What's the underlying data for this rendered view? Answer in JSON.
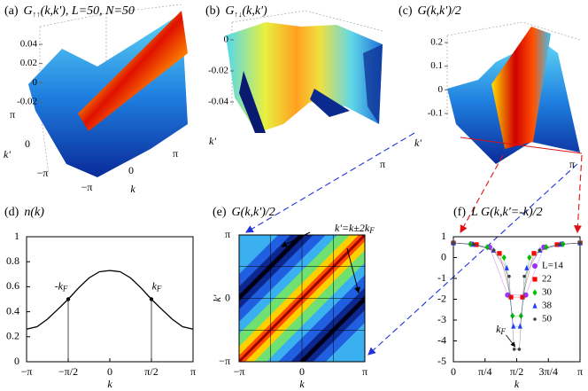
{
  "chart_data": [
    {
      "type": "surface3d",
      "label": "(a)",
      "title": {
        "main": "G",
        "sub": "↑↑",
        "rest": "(k,k'), L=50, N=50"
      },
      "xlabel": "k",
      "ylabel": "k'",
      "xlim": [
        -3.1416,
        3.1416
      ],
      "ylim": [
        -3.1416,
        3.1416
      ],
      "zlim": [
        -0.02,
        0.04
      ],
      "zticks": [
        0.04,
        0.02,
        0,
        -0.02
      ],
      "xticks": [
        {
          "value": -3.1416,
          "label": "−π"
        },
        0,
        {
          "value": 3.1416,
          "label": "π"
        }
      ],
      "yticks": [
        {
          "value": -3.1416,
          "label": "−π"
        },
        0,
        {
          "value": 3.1416,
          "label": "π"
        }
      ]
    },
    {
      "type": "surface3d",
      "label": "(b)",
      "title": {
        "main": "G",
        "sub": "↑↓",
        "rest": "(k,k')"
      },
      "ylabel": "k'",
      "xlim": [
        -3.1416,
        3.1416
      ],
      "zlim": [
        -0.04,
        0
      ],
      "zticks": [
        0,
        -0.02,
        -0.04
      ],
      "xticks": [
        {
          "value": 3.1416,
          "label": "π"
        }
      ]
    },
    {
      "type": "surface3d",
      "label": "(c)",
      "title": {
        "main": "G(k,k')/2"
      },
      "ylabel": "k'",
      "xlim": [
        -3.1416,
        3.1416
      ],
      "zlim": [
        -0.1,
        0.2
      ],
      "zticks": [
        0.2,
        0.1,
        0,
        -0.1
      ],
      "xticks": [
        {
          "value": 3.1416,
          "label": "π"
        }
      ]
    },
    {
      "type": "line",
      "label": "(d)",
      "title": {
        "main": "n(k)"
      },
      "xlabel": "k",
      "color": "#000000",
      "x": [
        -3.1416,
        -2.75,
        -2.36,
        -1.96,
        -1.5708,
        -1.18,
        -0.785,
        -0.39,
        0,
        0.39,
        0.785,
        1.18,
        1.5708,
        1.96,
        2.36,
        2.75,
        3.1416
      ],
      "values": [
        0.26,
        0.28,
        0.34,
        0.42,
        0.5,
        0.59,
        0.67,
        0.72,
        0.73,
        0.72,
        0.67,
        0.59,
        0.5,
        0.42,
        0.34,
        0.28,
        0.26
      ],
      "xlim": [
        -3.1416,
        3.1416
      ],
      "ylim": [
        0,
        1
      ],
      "xticks": [
        {
          "value": -3.1416,
          "label": "−π"
        },
        {
          "value": -1.5708,
          "label": "−π/2"
        },
        0,
        {
          "value": 1.5708,
          "label": "π/2"
        },
        {
          "value": 3.1416,
          "label": "π"
        }
      ],
      "yticks": [
        0,
        0.2,
        0.4,
        0.6,
        0.8,
        1
      ],
      "annotations": [
        {
          "text": "-k",
          "sub": "F",
          "x": -1.5708,
          "y": 0.5
        },
        {
          "text": "k",
          "sub": "F",
          "x": 1.5708,
          "y": 0.5
        }
      ]
    },
    {
      "type": "heatmap",
      "label": "(e)",
      "title": {
        "main": "G(k,k')/2"
      },
      "xlabel": "k",
      "ylabel": "k'",
      "xlim": [
        -3.1416,
        3.1416
      ],
      "ylim": [
        -3.1416,
        3.1416
      ],
      "xticks": [
        {
          "value": -3.1416,
          "label": "−π"
        },
        0,
        {
          "value": 3.1416,
          "label": "π"
        }
      ],
      "yticks": [
        {
          "value": -3.1416,
          "label": "−π"
        },
        0,
        {
          "value": 3.1416,
          "label": "π"
        }
      ],
      "annotations": [
        {
          "text": "k'=k±2k",
          "sub": "F"
        }
      ]
    },
    {
      "type": "scatter",
      "label": "(f)",
      "title": {
        "main": "L G(k,k'=-k)/2"
      },
      "xlabel": "k",
      "xlim": [
        0,
        3.1416
      ],
      "ylim": [
        -5,
        1
      ],
      "xticks": [
        0,
        {
          "value": 0.7854,
          "label": "π/4"
        },
        {
          "value": 1.5708,
          "label": "π/2"
        },
        {
          "value": 2.3562,
          "label": "3π/4"
        },
        {
          "value": 3.1416,
          "label": "π"
        }
      ],
      "yticks": [
        -5,
        -4,
        -3,
        -2,
        -1,
        0,
        1
      ],
      "series": [
        {
          "name": "L=14",
          "color": "#9b30ff",
          "marker": "circle",
          "x": [
            0,
            0.449,
            0.898,
            1.346,
            1.795,
            2.244,
            2.693,
            3.142
          ],
          "values": [
            0.7,
            0.65,
            0.5,
            -1.8,
            -1.8,
            0.5,
            0.65,
            0.7
          ]
        },
        {
          "name": "22",
          "color": "#ff0000",
          "marker": "square",
          "x": [
            0,
            0.571,
            1.142,
            1.428,
            1.714,
            2.0,
            2.571,
            3.142
          ],
          "values": [
            0.7,
            0.62,
            0.2,
            -1.9,
            -1.9,
            0.2,
            0.62,
            0.7
          ]
        },
        {
          "name": "30",
          "color": "#00c000",
          "marker": "diamond",
          "x": [
            0,
            0.419,
            0.838,
            1.257,
            1.466,
            1.676,
            1.885,
            2.304,
            2.723,
            3.142
          ],
          "values": [
            0.7,
            0.65,
            0.5,
            0,
            -2.8,
            -2.8,
            0,
            0.5,
            0.65,
            0.7
          ]
        },
        {
          "name": "38",
          "color": "#1f3fff",
          "marker": "triangle",
          "x": [
            0,
            0.496,
            0.992,
            1.323,
            1.488,
            1.654,
            1.819,
            2.15,
            2.646,
            3.142
          ],
          "values": [
            0.7,
            0.63,
            0.35,
            -0.5,
            -3.3,
            -3.3,
            -0.5,
            0.35,
            0.63,
            0.7
          ]
        },
        {
          "name": "50",
          "color": "#404040",
          "marker": "dot",
          "x": [
            0,
            0.503,
            1.005,
            1.382,
            1.508,
            1.634,
            1.759,
            2.136,
            2.639,
            3.142
          ],
          "values": [
            0.7,
            0.63,
            0.35,
            -0.9,
            -4.4,
            -4.4,
            -0.9,
            0.35,
            0.63,
            0.7
          ]
        }
      ],
      "annotations": [
        {
          "text": "k",
          "sub": "F",
          "x": 1.5708,
          "y": -4.4
        }
      ]
    }
  ]
}
